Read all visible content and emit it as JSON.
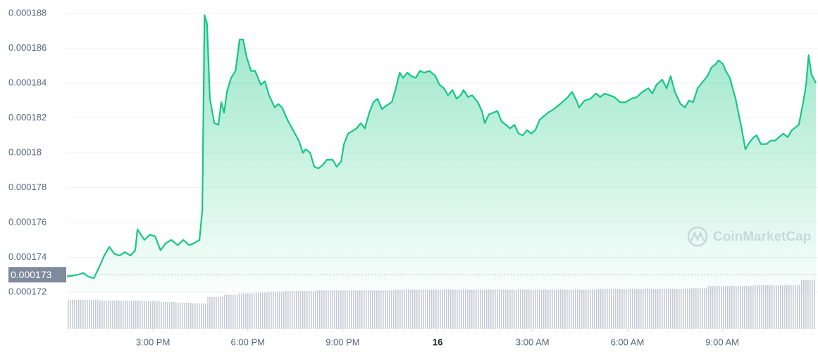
{
  "chart_data": {
    "type": "area",
    "x": [
      12.28,
      12.62,
      12.8,
      12.95,
      13.13,
      13.29,
      13.46,
      13.62,
      13.78,
      13.95,
      14.11,
      14.29,
      14.44,
      14.51,
      14.73,
      14.91,
      15.07,
      15.24,
      15.4,
      15.58,
      15.78,
      15.96,
      16.14,
      16.29,
      16.47,
      16.56,
      16.63,
      16.71,
      16.8,
      16.94,
      17.07,
      17.16,
      17.25,
      17.34,
      17.47,
      17.61,
      17.74,
      17.85,
      17.96,
      18.1,
      18.23,
      18.41,
      18.54,
      18.67,
      18.85,
      18.96,
      19.08,
      19.25,
      19.43,
      19.61,
      19.74,
      19.83,
      19.97,
      20.1,
      20.23,
      20.37,
      20.5,
      20.68,
      20.81,
      20.95,
      21.04,
      21.17,
      21.44,
      21.57,
      21.7,
      21.84,
      21.97,
      22.1,
      22.24,
      22.37,
      22.55,
      22.68,
      22.8,
      22.91,
      23.04,
      23.17,
      23.31,
      23.44,
      23.57,
      23.75,
      23.93,
      24.06,
      24.2,
      24.33,
      24.47,
      24.6,
      24.73,
      24.82,
      24.96,
      25.09,
      25.27,
      25.4,
      25.49,
      25.62,
      25.89,
      26.02,
      26.16,
      26.29,
      26.43,
      26.56,
      26.69,
      26.83,
      26.96,
      27.09,
      27.23,
      27.49,
      27.67,
      27.94,
      28.12,
      28.25,
      28.39,
      28.47,
      28.65,
      28.83,
      29.01,
      29.14,
      29.28,
      29.59,
      29.77,
      29.94,
      30.12,
      30.3,
      30.48,
      30.66,
      30.79,
      30.92,
      31.1,
      31.24,
      31.37,
      31.5,
      31.68,
      31.82,
      31.95,
      32.08,
      32.22,
      32.35,
      32.53,
      32.66,
      32.8,
      32.88,
      33.02,
      33.11,
      33.24,
      33.42,
      33.6,
      33.73,
      33.86,
      34.0,
      34.09,
      34.22,
      34.4,
      34.53,
      34.67,
      34.8,
      34.93,
      35.07,
      35.2,
      35.42,
      35.56,
      35.65,
      35.73,
      35.82,
      35.96
    ],
    "series": [
      {
        "name": "Price",
        "color": "#16c784",
        "values": [
          0.0001729,
          0.000173,
          0.0001731,
          0.0001729,
          0.0001728,
          0.0001734,
          0.0001741,
          0.0001746,
          0.0001742,
          0.0001741,
          0.0001743,
          0.0001741,
          0.0001744,
          0.0001756,
          0.000175,
          0.0001753,
          0.0001752,
          0.0001744,
          0.0001748,
          0.000175,
          0.0001747,
          0.000175,
          0.0001747,
          0.0001748,
          0.000175,
          0.0001767,
          0.0001879,
          0.0001874,
          0.0001831,
          0.0001817,
          0.0001816,
          0.0001829,
          0.0001823,
          0.0001835,
          0.0001843,
          0.0001847,
          0.0001865,
          0.0001865,
          0.0001855,
          0.0001847,
          0.0001847,
          0.0001839,
          0.0001841,
          0.0001833,
          0.0001826,
          0.0001828,
          0.0001826,
          0.0001819,
          0.0001813,
          0.0001807,
          0.00018,
          0.0001802,
          0.00018,
          0.0001792,
          0.0001791,
          0.0001793,
          0.0001796,
          0.0001796,
          0.0001792,
          0.0001795,
          0.0001805,
          0.0001811,
          0.0001814,
          0.0001817,
          0.0001814,
          0.0001823,
          0.0001829,
          0.0001831,
          0.0001825,
          0.0001827,
          0.0001829,
          0.0001837,
          0.0001846,
          0.0001843,
          0.0001846,
          0.0001844,
          0.0001843,
          0.0001847,
          0.0001846,
          0.0001847,
          0.0001844,
          0.0001839,
          0.0001837,
          0.0001833,
          0.0001836,
          0.0001831,
          0.0001833,
          0.0001836,
          0.0001832,
          0.0001833,
          0.0001829,
          0.0001824,
          0.0001817,
          0.0001822,
          0.0001824,
          0.0001818,
          0.0001816,
          0.0001814,
          0.0001816,
          0.0001811,
          0.000181,
          0.0001813,
          0.0001811,
          0.0001813,
          0.0001819,
          0.0001823,
          0.0001825,
          0.0001829,
          0.0001832,
          0.0001835,
          0.000183,
          0.0001826,
          0.000183,
          0.0001831,
          0.0001834,
          0.0001832,
          0.0001834,
          0.0001832,
          0.0001829,
          0.0001829,
          0.0001831,
          0.0001832,
          0.0001835,
          0.0001837,
          0.0001834,
          0.0001839,
          0.0001842,
          0.0001837,
          0.0001844,
          0.0001835,
          0.0001828,
          0.0001826,
          0.000183,
          0.0001829,
          0.0001837,
          0.000184,
          0.0001844,
          0.0001849,
          0.0001851,
          0.0001853,
          0.0001851,
          0.0001847,
          0.0001843,
          0.0001831,
          0.0001815,
          0.0001802,
          0.0001806,
          0.0001809,
          0.000181,
          0.0001805,
          0.0001805,
          0.0001807,
          0.0001807,
          0.0001809,
          0.0001811,
          0.0001809,
          0.0001813,
          0.0001816,
          0.0001829,
          0.0001839,
          0.0001856,
          0.0001845,
          0.000184
        ]
      }
    ],
    "volume": {
      "color": "#c5cad3",
      "values": [
        40,
        40,
        39,
        39,
        39,
        38,
        37,
        36,
        35,
        44,
        47,
        49,
        50,
        51,
        52,
        52,
        53,
        53,
        53,
        53,
        53,
        54,
        54,
        54,
        54,
        54,
        54,
        54,
        54,
        54,
        54,
        54,
        54,
        54,
        55,
        55,
        55,
        55,
        55,
        55,
        56,
        59,
        59,
        59,
        60,
        60,
        60,
        67
      ]
    },
    "xlim": [
      12.28,
      35.96
    ],
    "xticks": [
      {
        "value": 15,
        "label": "3:00 PM"
      },
      {
        "value": 18,
        "label": "6:00 PM"
      },
      {
        "value": 21,
        "label": "9:00 PM"
      },
      {
        "value": 24,
        "label": "16"
      },
      {
        "value": 27,
        "label": "3:00 AM"
      },
      {
        "value": 30,
        "label": "6:00 AM"
      },
      {
        "value": 33,
        "label": "9:00 AM"
      }
    ],
    "ylim": [
      0.000172,
      0.000188
    ],
    "yticks": [
      0.000172,
      0.000174,
      0.000176,
      0.000178,
      0.00018,
      0.000182,
      0.000184,
      0.000186,
      0.000188
    ],
    "price_marker": 0.000173,
    "grid": true,
    "watermark": "CoinMarketCap"
  }
}
